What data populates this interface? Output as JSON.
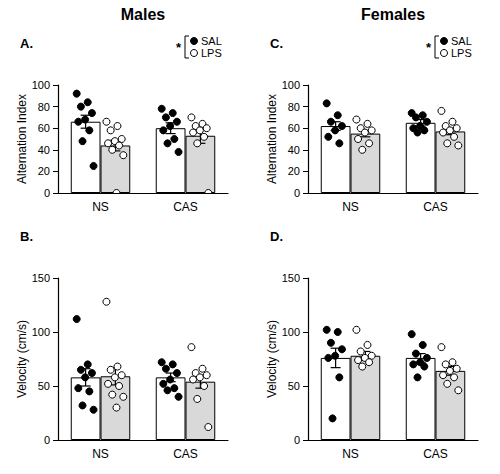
{
  "chart_data": [
    {
      "type": "bar",
      "panel": "A.",
      "title": "Males",
      "y_label": "Alternation Index",
      "categories": [
        "NS",
        "CAS"
      ],
      "ylim": [
        0,
        100
      ],
      "yticks": [
        0,
        20,
        40,
        60,
        80,
        100
      ],
      "grid": false,
      "legend": "top right",
      "annotation": "*",
      "series": [
        {
          "name": "SAL",
          "color": "#ffffff",
          "marker": "filled",
          "values": [
            66,
            60
          ],
          "errors": [
            6,
            5
          ],
          "points": [
            [
              92,
              84,
              80,
              74,
              68,
              66,
              58,
              48,
              25
            ],
            [
              78,
              74,
              70,
              66,
              62,
              58,
              50,
              46,
              38
            ]
          ]
        },
        {
          "name": "LPS",
          "color": "#d9d9d9",
          "marker": "open",
          "values": [
            44,
            53
          ],
          "errors": [
            5,
            7
          ],
          "points": [
            [
              66,
              62,
              58,
              50,
              48,
              46,
              44,
              40,
              35,
              0
            ],
            [
              70,
              64,
              62,
              60,
              58,
              56,
              52,
              46,
              0
            ]
          ]
        }
      ]
    },
    {
      "type": "bar",
      "panel": "B.",
      "y_label": "Velocity (cm/s)",
      "categories": [
        "NS",
        "CAS"
      ],
      "ylim": [
        0,
        150
      ],
      "yticks": [
        0,
        50,
        100,
        150
      ],
      "grid": false,
      "series": [
        {
          "name": "SAL",
          "color": "#ffffff",
          "marker": "filled",
          "values": [
            58,
            58
          ],
          "errors": [
            8,
            4
          ],
          "points": [
            [
              112,
              70,
              65,
              62,
              58,
              48,
              45,
              32,
              28
            ],
            [
              72,
              70,
              66,
              62,
              56,
              52,
              48,
              46,
              40
            ]
          ]
        },
        {
          "name": "LPS",
          "color": "#d9d9d9",
          "marker": "open",
          "values": [
            59,
            54
          ],
          "errors": [
            8,
            6
          ],
          "points": [
            [
              128,
              68,
              65,
              60,
              58,
              52,
              50,
              42,
              40,
              30
            ],
            [
              86,
              66,
              62,
              60,
              58,
              56,
              50,
              38,
              12
            ]
          ]
        }
      ]
    },
    {
      "type": "bar",
      "panel": "C.",
      "title": "Females",
      "y_label": "Alternation Index",
      "categories": [
        "NS",
        "CAS"
      ],
      "ylim": [
        0,
        100
      ],
      "yticks": [
        0,
        20,
        40,
        60,
        80,
        100
      ],
      "grid": false,
      "legend": "top right",
      "annotation": "*",
      "series": [
        {
          "name": "SAL",
          "color": "#ffffff",
          "marker": "filled",
          "values": [
            62,
            65
          ],
          "errors": [
            4,
            3
          ],
          "points": [
            [
              83,
              72,
              66,
              62,
              58,
              52,
              46
            ],
            [
              74,
              72,
              70,
              66,
              62,
              60,
              58,
              56
            ]
          ]
        },
        {
          "name": "LPS",
          "color": "#d9d9d9",
          "marker": "open",
          "values": [
            55,
            57
          ],
          "errors": [
            3,
            3
          ],
          "points": [
            [
              68,
              64,
              60,
              58,
              56,
              50,
              46,
              40
            ],
            [
              76,
              66,
              62,
              60,
              58,
              56,
              52,
              46,
              44
            ]
          ]
        }
      ]
    },
    {
      "type": "bar",
      "panel": "D.",
      "y_label": "Velocity (cm/s)",
      "categories": [
        "NS",
        "CAS"
      ],
      "ylim": [
        0,
        150
      ],
      "yticks": [
        0,
        50,
        100,
        150
      ],
      "grid": false,
      "series": [
        {
          "name": "SAL",
          "color": "#ffffff",
          "marker": "filled",
          "values": [
            76,
            76
          ],
          "errors": [
            9,
            4
          ],
          "points": [
            [
              102,
              100,
              90,
              84,
              78,
              76,
              58,
              20
            ],
            [
              98,
              88,
              80,
              76,
              72,
              70,
              68,
              58
            ]
          ]
        },
        {
          "name": "LPS",
          "color": "#d9d9d9",
          "marker": "open",
          "values": [
            78,
            64
          ],
          "errors": [
            4,
            4
          ],
          "points": [
            [
              102,
              88,
              82,
              78,
              76,
              74,
              72,
              68
            ],
            [
              86,
              72,
              70,
              66,
              64,
              60,
              58,
              52,
              46
            ]
          ]
        }
      ]
    }
  ]
}
